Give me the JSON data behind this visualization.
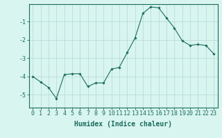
{
  "x": [
    0,
    1,
    2,
    3,
    4,
    5,
    6,
    7,
    8,
    9,
    10,
    11,
    12,
    13,
    14,
    15,
    16,
    17,
    18,
    19,
    20,
    21,
    22,
    23
  ],
  "y": [
    -4.0,
    -4.3,
    -4.6,
    -5.2,
    -3.9,
    -3.85,
    -3.85,
    -4.55,
    -4.35,
    -4.35,
    -3.6,
    -3.5,
    -2.7,
    -1.9,
    -0.55,
    -0.2,
    -0.25,
    -0.8,
    -1.35,
    -2.05,
    -2.3,
    -2.25,
    -2.3,
    -2.75
  ],
  "line_color": "#1a6b5a",
  "marker": "D",
  "marker_size": 1.8,
  "bg_color": "#d8f5f0",
  "grid_color": "#b5d8d2",
  "xlabel": "Humidex (Indice chaleur)",
  "xlabel_fontsize": 7,
  "tick_fontsize": 6,
  "ylim": [
    -5.7,
    -0.05
  ],
  "xlim": [
    -0.5,
    23.5
  ],
  "yticks": [
    -5,
    -4,
    -3,
    -2,
    -1
  ],
  "xticks": [
    0,
    1,
    2,
    3,
    4,
    5,
    6,
    7,
    8,
    9,
    10,
    11,
    12,
    13,
    14,
    15,
    16,
    17,
    18,
    19,
    20,
    21,
    22,
    23
  ]
}
